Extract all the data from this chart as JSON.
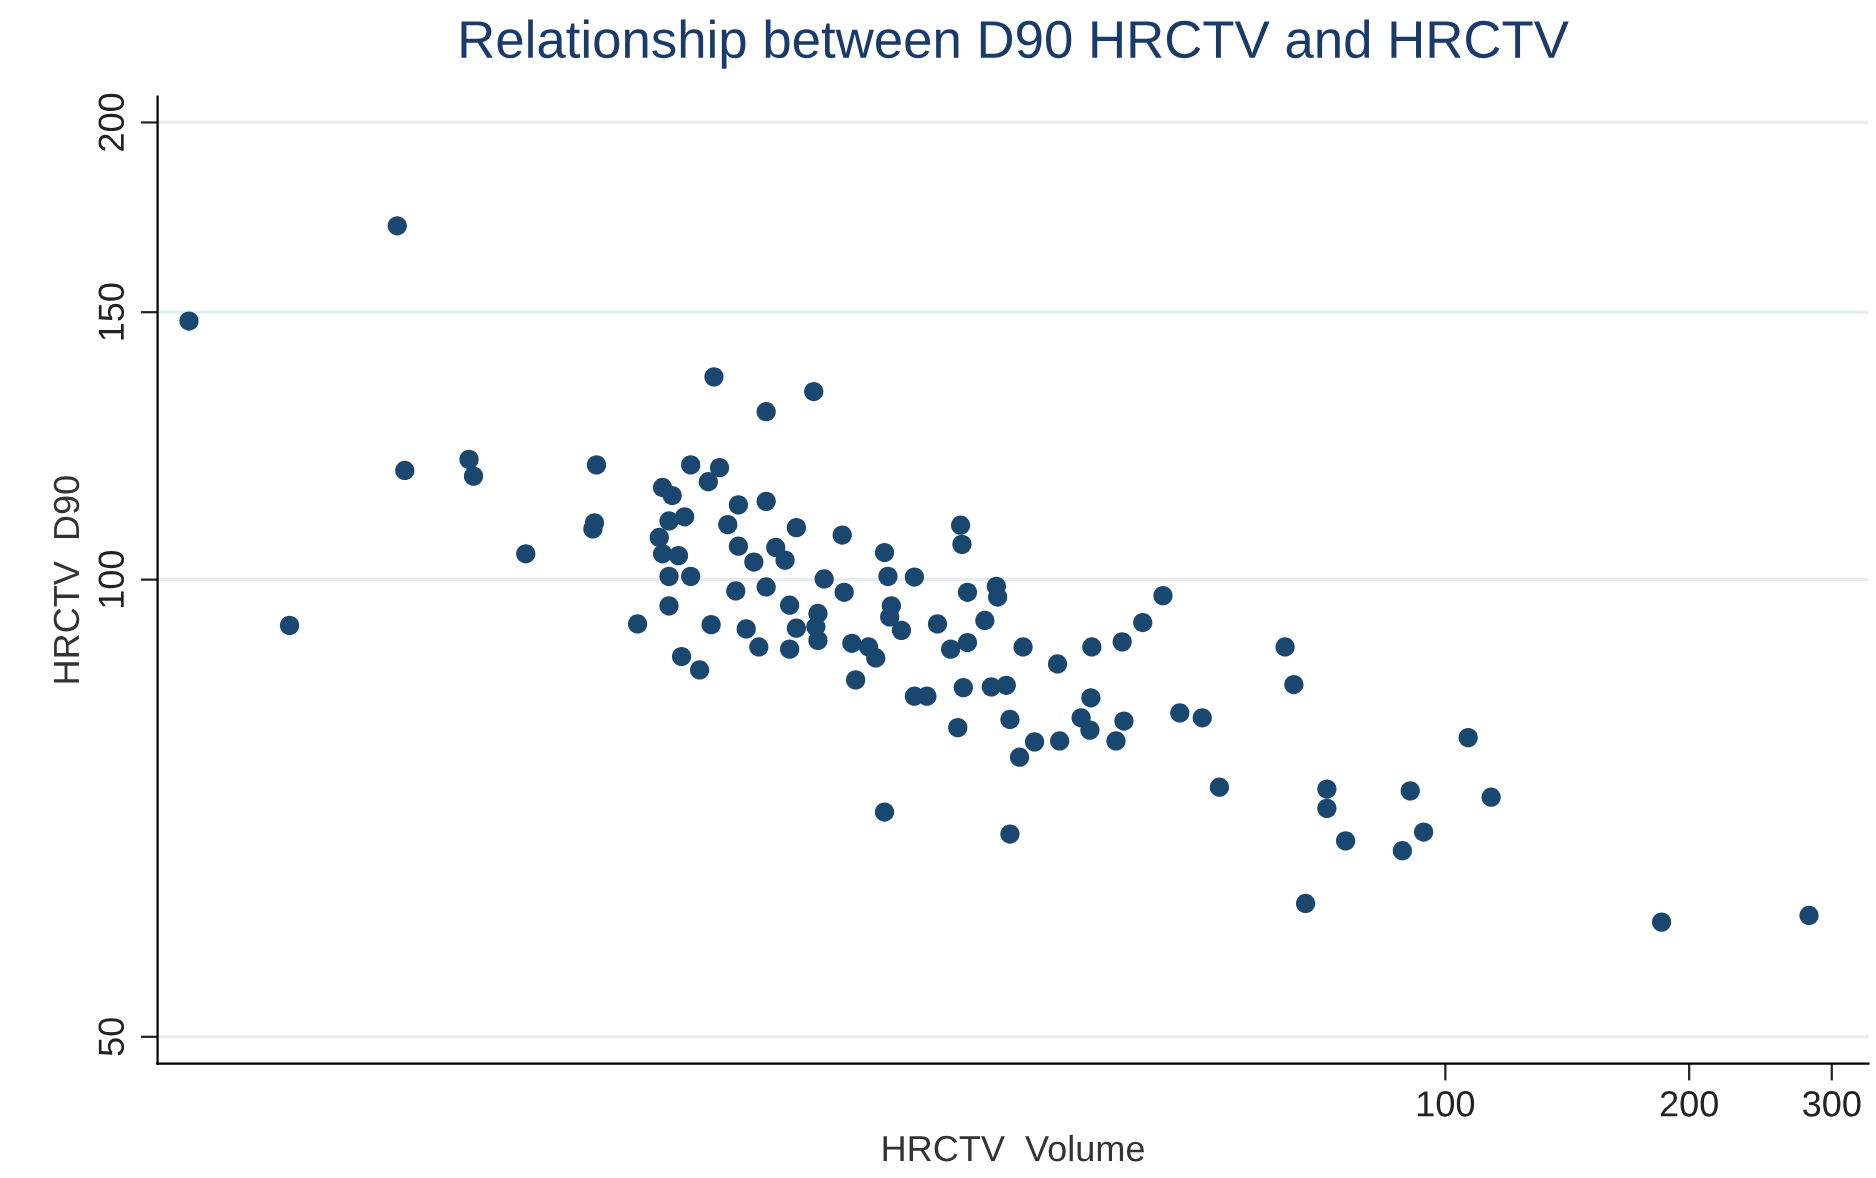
{
  "chart_data": {
    "type": "scatter",
    "title": "Relationship between D90 HRCTV and HRCTV",
    "xlabel": "HRCTV  Volume",
    "ylabel": "HRCTV  D90",
    "log": "xy",
    "xlim": [
      2.57,
      333
    ],
    "ylim": [
      48,
      208
    ],
    "xticks": [
      100,
      200,
      300
    ],
    "yticks": [
      50,
      100,
      150,
      200
    ],
    "grid": "y",
    "marker": "circle",
    "legend": false,
    "series": [
      {
        "color": "#1a476f",
        "x": [
          2.81,
          5.08,
          5.19,
          6.23,
          6.31,
          8.95,
          8.86,
          8.9,
          7.32,
          3.74,
          10.06,
          12.5,
          16.6,
          14.5,
          11.7,
          12.7,
          12.3,
          10.8,
          11.1,
          13.4,
          14.5,
          11.5,
          11.0,
          13.0,
          15.8,
          18.0,
          10.7,
          25.2,
          25.3,
          13.4,
          14.9,
          15.3,
          10.8,
          11.3,
          14.0,
          20.3,
          11.0,
          11.7,
          17.1,
          20.5,
          22.1,
          13.3,
          14.5,
          18.1,
          25.7,
          27.9,
          28.0,
          44.8,
          11.0,
          15.5,
          20.7,
          16.8,
          12.4,
          20.6,
          23.6,
          27.0,
          42.3,
          13.7,
          15.8,
          16.7,
          21.3,
          14.2,
          15.5,
          16.8,
          18.5,
          19.4,
          24.5,
          25.7,
          30.1,
          36.6,
          39.9,
          33.2,
          19.8,
          11.4,
          12.0,
          18.7,
          22.1,
          22.9,
          25.4,
          27.5,
          28.7,
          36.5,
          35.5,
          36.4,
          40.1,
          47.0,
          50.1,
          25.0,
          29.0,
          31.1,
          33.4,
          29.8,
          39.2,
          52.6,
          20.3,
          29.0,
          63.4,
          65.0,
          106.7,
          71.4,
          71.4,
          75.3,
          90.5,
          113.9,
          94.0,
          88.5,
          67.2,
          184.9,
          281.2
        ],
        "values": [
          148,
          171,
          118,
          120,
          117,
          119,
          108,
          109,
          104,
          93.3,
          93.5,
          136,
          133,
          129,
          119,
          118.5,
          116,
          115,
          113.6,
          112,
          112.6,
          110,
          109.3,
          108.7,
          108.2,
          107,
          106.6,
          108.6,
          105.5,
          105.2,
          105,
          103,
          104,
          103.7,
          102.7,
          104.2,
          100.5,
          100.5,
          100.1,
          100.5,
          100.4,
          98.3,
          98.9,
          98.1,
          98.1,
          99,
          97.4,
          97.6,
          96.1,
          96.2,
          96.1,
          95,
          93.4,
          94.5,
          93.5,
          94,
          93.7,
          92.8,
          92.9,
          93.1,
          92.6,
          90.3,
          90,
          91.2,
          90.8,
          90.3,
          90,
          90.9,
          90.3,
          90.3,
          91,
          88,
          88.8,
          89,
          87.2,
          85.9,
          83.8,
          83.8,
          84.9,
          85,
          85.2,
          83.6,
          81.1,
          79.6,
          80.7,
          81.7,
          81.1,
          79.9,
          80.9,
          78.2,
          78.3,
          76.4,
          78.3,
          73,
          70.3,
          68,
          90.3,
          85.3,
          78.7,
          72.8,
          70.7,
          67.3,
          72.6,
          71.9,
          68.2,
          66.3,
          61.2,
          59.5,
          60.1
        ]
      }
    ]
  }
}
